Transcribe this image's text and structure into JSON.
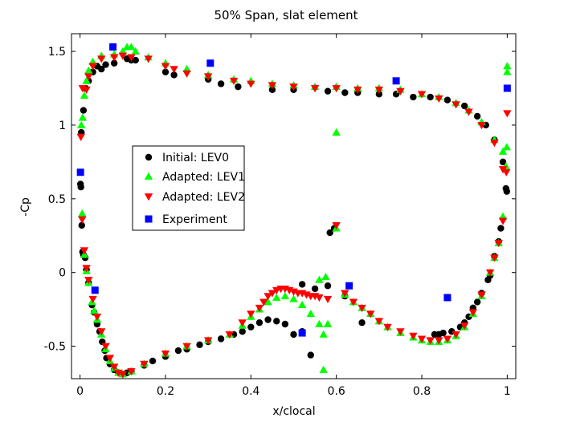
{
  "chart_data": {
    "type": "scatter",
    "title": "50% Span, slat element",
    "xlabel": "x/clocal",
    "ylabel": "-Cp",
    "xlim": [
      -0.02,
      1.02
    ],
    "ylim": [
      -0.72,
      1.62
    ],
    "xticks": [
      0,
      0.2,
      0.4,
      0.6,
      0.8,
      1
    ],
    "xtick_labels": [
      "0",
      "0.2",
      "0.4",
      "0.6",
      "0.8",
      "1"
    ],
    "yticks": [
      -0.5,
      0,
      0.5,
      1,
      1.5
    ],
    "ytick_labels": [
      "-0.5",
      "0",
      "0.5",
      "1",
      "1.5"
    ],
    "grid": false,
    "legend_position": "left-center",
    "series": [
      {
        "name": "Initial: LEV0",
        "marker": "circle",
        "color": "#000000",
        "points": [
          [
            0.001,
            0.6
          ],
          [
            0.002,
            0.58
          ],
          [
            0.004,
            0.32
          ],
          [
            0.006,
            0.14
          ],
          [
            0.008,
            0.12
          ],
          [
            0.012,
            0.1
          ],
          [
            0.015,
            0.02
          ],
          [
            0.02,
            -0.07
          ],
          [
            0.028,
            -0.22
          ],
          [
            0.033,
            -0.27
          ],
          [
            0.04,
            -0.35
          ],
          [
            0.046,
            -0.4
          ],
          [
            0.052,
            -0.47
          ],
          [
            0.058,
            -0.53
          ],
          [
            0.062,
            -0.58
          ],
          [
            0.07,
            -0.62
          ],
          [
            0.08,
            -0.66
          ],
          [
            0.09,
            -0.68
          ],
          [
            0.1,
            -0.69
          ],
          [
            0.11,
            -0.68
          ],
          [
            0.12,
            -0.67
          ],
          [
            0.15,
            -0.63
          ],
          [
            0.17,
            -0.6
          ],
          [
            0.2,
            -0.57
          ],
          [
            0.23,
            -0.53
          ],
          [
            0.25,
            -0.52
          ],
          [
            0.28,
            -0.49
          ],
          [
            0.3,
            -0.47
          ],
          [
            0.33,
            -0.45
          ],
          [
            0.36,
            -0.42
          ],
          [
            0.38,
            -0.4
          ],
          [
            0.4,
            -0.37
          ],
          [
            0.42,
            -0.34
          ],
          [
            0.44,
            -0.32
          ],
          [
            0.46,
            -0.33
          ],
          [
            0.48,
            -0.35
          ],
          [
            0.5,
            -0.42
          ],
          [
            0.52,
            -0.4
          ],
          [
            0.54,
            -0.56
          ],
          [
            0.585,
            0.27
          ],
          [
            0.595,
            0.3
          ],
          [
            0.66,
            -0.34
          ],
          [
            0.003,
            0.95
          ],
          [
            0.008,
            1.1
          ],
          [
            0.013,
            1.25
          ],
          [
            0.02,
            1.3
          ],
          [
            0.03,
            1.36
          ],
          [
            0.04,
            1.4
          ],
          [
            0.05,
            1.38
          ],
          [
            0.06,
            1.41
          ],
          [
            0.08,
            1.42
          ],
          [
            0.11,
            1.45
          ],
          [
            0.12,
            1.44
          ],
          [
            0.13,
            1.44
          ],
          [
            0.2,
            1.36
          ],
          [
            0.22,
            1.34
          ],
          [
            0.3,
            1.31
          ],
          [
            0.33,
            1.28
          ],
          [
            0.37,
            1.26
          ],
          [
            0.45,
            1.24
          ],
          [
            0.5,
            1.24
          ],
          [
            0.58,
            1.23
          ],
          [
            0.62,
            1.22
          ],
          [
            0.65,
            1.22
          ],
          [
            0.7,
            1.21
          ],
          [
            0.74,
            1.21
          ],
          [
            0.78,
            1.19
          ],
          [
            0.82,
            1.19
          ],
          [
            0.86,
            1.17
          ],
          [
            0.9,
            1.13
          ],
          [
            0.93,
            1.06
          ],
          [
            0.95,
            1.0
          ],
          [
            0.97,
            0.9
          ],
          [
            0.99,
            0.75
          ],
          [
            0.997,
            0.57
          ],
          [
            0.999,
            0.55
          ],
          [
            0.985,
            0.3
          ],
          [
            0.98,
            0.21
          ],
          [
            0.97,
            0.11
          ],
          [
            0.96,
            -0.02
          ],
          [
            0.955,
            -0.05
          ],
          [
            0.94,
            -0.14
          ],
          [
            0.93,
            -0.2
          ],
          [
            0.92,
            -0.24
          ],
          [
            0.91,
            -0.3
          ],
          [
            0.9,
            -0.34
          ],
          [
            0.89,
            -0.37
          ],
          [
            0.87,
            -0.4
          ],
          [
            0.85,
            -0.41
          ],
          [
            0.84,
            -0.42
          ],
          [
            0.83,
            -0.42
          ],
          [
            0.62,
            -0.16
          ],
          [
            0.58,
            -0.09
          ],
          [
            0.55,
            -0.11
          ],
          [
            0.52,
            -0.08
          ]
        ]
      },
      {
        "name": "Adapted: LEV1",
        "marker": "triangle-up",
        "color": "#00ff00",
        "points": [
          [
            0.005,
            0.4
          ],
          [
            0.01,
            0.12
          ],
          [
            0.015,
            0.01
          ],
          [
            0.02,
            -0.07
          ],
          [
            0.028,
            -0.2
          ],
          [
            0.033,
            -0.26
          ],
          [
            0.04,
            -0.32
          ],
          [
            0.05,
            -0.42
          ],
          [
            0.06,
            -0.52
          ],
          [
            0.07,
            -0.6
          ],
          [
            0.08,
            -0.65
          ],
          [
            0.09,
            -0.68
          ],
          [
            0.1,
            -0.69
          ],
          [
            0.12,
            -0.67
          ],
          [
            0.15,
            -0.62
          ],
          [
            0.2,
            -0.55
          ],
          [
            0.25,
            -0.5
          ],
          [
            0.3,
            -0.46
          ],
          [
            0.35,
            -0.42
          ],
          [
            0.38,
            -0.36
          ],
          [
            0.4,
            -0.3
          ],
          [
            0.42,
            -0.25
          ],
          [
            0.44,
            -0.2
          ],
          [
            0.46,
            -0.17
          ],
          [
            0.48,
            -0.16
          ],
          [
            0.5,
            -0.18
          ],
          [
            0.52,
            -0.22
          ],
          [
            0.54,
            -0.28
          ],
          [
            0.56,
            -0.35
          ],
          [
            0.57,
            -0.42
          ],
          [
            0.58,
            -0.35
          ],
          [
            0.56,
            -0.05
          ],
          [
            0.575,
            -0.03
          ],
          [
            0.57,
            -0.66
          ],
          [
            0.6,
            0.95
          ],
          [
            0.6,
            0.3
          ],
          [
            0.62,
            -0.15
          ],
          [
            0.64,
            -0.2
          ],
          [
            0.66,
            -0.24
          ],
          [
            0.68,
            -0.28
          ],
          [
            0.7,
            -0.33
          ],
          [
            0.72,
            -0.37
          ],
          [
            0.75,
            -0.41
          ],
          [
            0.78,
            -0.44
          ],
          [
            0.8,
            -0.46
          ],
          [
            0.82,
            -0.47
          ],
          [
            0.84,
            -0.47
          ],
          [
            0.86,
            -0.46
          ],
          [
            0.88,
            -0.43
          ],
          [
            0.9,
            -0.37
          ],
          [
            0.92,
            -0.28
          ],
          [
            0.94,
            -0.16
          ],
          [
            0.96,
            0.0
          ],
          [
            0.97,
            0.1
          ],
          [
            0.98,
            0.2
          ],
          [
            0.99,
            0.38
          ],
          [
            0.003,
            1.0
          ],
          [
            0.006,
            1.05
          ],
          [
            0.01,
            1.2
          ],
          [
            0.015,
            1.3
          ],
          [
            0.02,
            1.37
          ],
          [
            0.03,
            1.43
          ],
          [
            0.05,
            1.47
          ],
          [
            0.08,
            1.48
          ],
          [
            0.1,
            1.5
          ],
          [
            0.11,
            1.53
          ],
          [
            0.12,
            1.53
          ],
          [
            0.13,
            1.5
          ],
          [
            0.16,
            1.46
          ],
          [
            0.2,
            1.42
          ],
          [
            0.25,
            1.38
          ],
          [
            0.3,
            1.34
          ],
          [
            0.36,
            1.31
          ],
          [
            0.4,
            1.3
          ],
          [
            0.45,
            1.28
          ],
          [
            0.5,
            1.27
          ],
          [
            0.55,
            1.26
          ],
          [
            0.6,
            1.26
          ],
          [
            0.65,
            1.25
          ],
          [
            0.7,
            1.25
          ],
          [
            0.75,
            1.24
          ],
          [
            0.8,
            1.21
          ],
          [
            0.84,
            1.19
          ],
          [
            0.88,
            1.15
          ],
          [
            0.91,
            1.1
          ],
          [
            0.94,
            1.02
          ],
          [
            0.97,
            0.9
          ],
          [
            0.99,
            0.82
          ],
          [
            0.997,
            0.72
          ],
          [
            0.999,
            0.85
          ],
          [
            1.0,
            1.4
          ],
          [
            1.0,
            1.36
          ]
        ]
      },
      {
        "name": "Adapted: LEV2",
        "marker": "triangle-down",
        "color": "#ff0000",
        "points": [
          [
            0.002,
            0.92
          ],
          [
            0.005,
            0.36
          ],
          [
            0.01,
            0.15
          ],
          [
            0.015,
            0.03
          ],
          [
            0.02,
            -0.05
          ],
          [
            0.03,
            -0.18
          ],
          [
            0.04,
            -0.3
          ],
          [
            0.05,
            -0.4
          ],
          [
            0.06,
            -0.5
          ],
          [
            0.07,
            -0.58
          ],
          [
            0.08,
            -0.64
          ],
          [
            0.09,
            -0.68
          ],
          [
            0.1,
            -0.69
          ],
          [
            0.12,
            -0.67
          ],
          [
            0.15,
            -0.62
          ],
          [
            0.2,
            -0.55
          ],
          [
            0.25,
            -0.5
          ],
          [
            0.3,
            -0.46
          ],
          [
            0.35,
            -0.42
          ],
          [
            0.38,
            -0.34
          ],
          [
            0.4,
            -0.28
          ],
          [
            0.42,
            -0.24
          ],
          [
            0.43,
            -0.2
          ],
          [
            0.44,
            -0.16
          ],
          [
            0.45,
            -0.14
          ],
          [
            0.46,
            -0.12
          ],
          [
            0.47,
            -0.11
          ],
          [
            0.48,
            -0.11
          ],
          [
            0.49,
            -0.12
          ],
          [
            0.5,
            -0.13
          ],
          [
            0.51,
            -0.14
          ],
          [
            0.52,
            -0.14
          ],
          [
            0.53,
            -0.15
          ],
          [
            0.54,
            -0.16
          ],
          [
            0.55,
            -0.16
          ],
          [
            0.56,
            -0.17
          ],
          [
            0.58,
            -0.18
          ],
          [
            0.6,
            0.32
          ],
          [
            0.62,
            -0.14
          ],
          [
            0.64,
            -0.2
          ],
          [
            0.66,
            -0.24
          ],
          [
            0.68,
            -0.28
          ],
          [
            0.7,
            -0.33
          ],
          [
            0.72,
            -0.37
          ],
          [
            0.75,
            -0.4
          ],
          [
            0.78,
            -0.43
          ],
          [
            0.8,
            -0.45
          ],
          [
            0.82,
            -0.46
          ],
          [
            0.84,
            -0.46
          ],
          [
            0.86,
            -0.45
          ],
          [
            0.88,
            -0.42
          ],
          [
            0.9,
            -0.36
          ],
          [
            0.92,
            -0.27
          ],
          [
            0.94,
            -0.15
          ],
          [
            0.96,
            0.0
          ],
          [
            0.97,
            0.1
          ],
          [
            0.98,
            0.2
          ],
          [
            0.99,
            0.35
          ],
          [
            0.006,
            1.25
          ],
          [
            0.015,
            1.24
          ],
          [
            0.02,
            1.33
          ],
          [
            0.03,
            1.4
          ],
          [
            0.05,
            1.45
          ],
          [
            0.08,
            1.46
          ],
          [
            0.1,
            1.47
          ],
          [
            0.12,
            1.46
          ],
          [
            0.16,
            1.45
          ],
          [
            0.2,
            1.4
          ],
          [
            0.22,
            1.38
          ],
          [
            0.25,
            1.35
          ],
          [
            0.3,
            1.33
          ],
          [
            0.36,
            1.3
          ],
          [
            0.4,
            1.28
          ],
          [
            0.45,
            1.27
          ],
          [
            0.5,
            1.26
          ],
          [
            0.55,
            1.25
          ],
          [
            0.6,
            1.25
          ],
          [
            0.65,
            1.24
          ],
          [
            0.7,
            1.24
          ],
          [
            0.75,
            1.23
          ],
          [
            0.8,
            1.21
          ],
          [
            0.84,
            1.18
          ],
          [
            0.88,
            1.14
          ],
          [
            0.91,
            1.09
          ],
          [
            0.94,
            1.0
          ],
          [
            0.97,
            0.88
          ],
          [
            0.99,
            0.7
          ],
          [
            1.0,
            1.08
          ],
          [
            0.998,
            0.68
          ]
        ]
      },
      {
        "name": "Experiment",
        "marker": "square",
        "color": "#0000ff",
        "points": [
          [
            0.001,
            0.68
          ],
          [
            0.035,
            -0.12
          ],
          [
            0.077,
            1.53
          ],
          [
            0.305,
            1.42
          ],
          [
            0.52,
            -0.41
          ],
          [
            0.63,
            -0.09
          ],
          [
            0.74,
            1.3
          ],
          [
            0.86,
            -0.17
          ],
          [
            1.0,
            1.25
          ]
        ]
      }
    ]
  }
}
